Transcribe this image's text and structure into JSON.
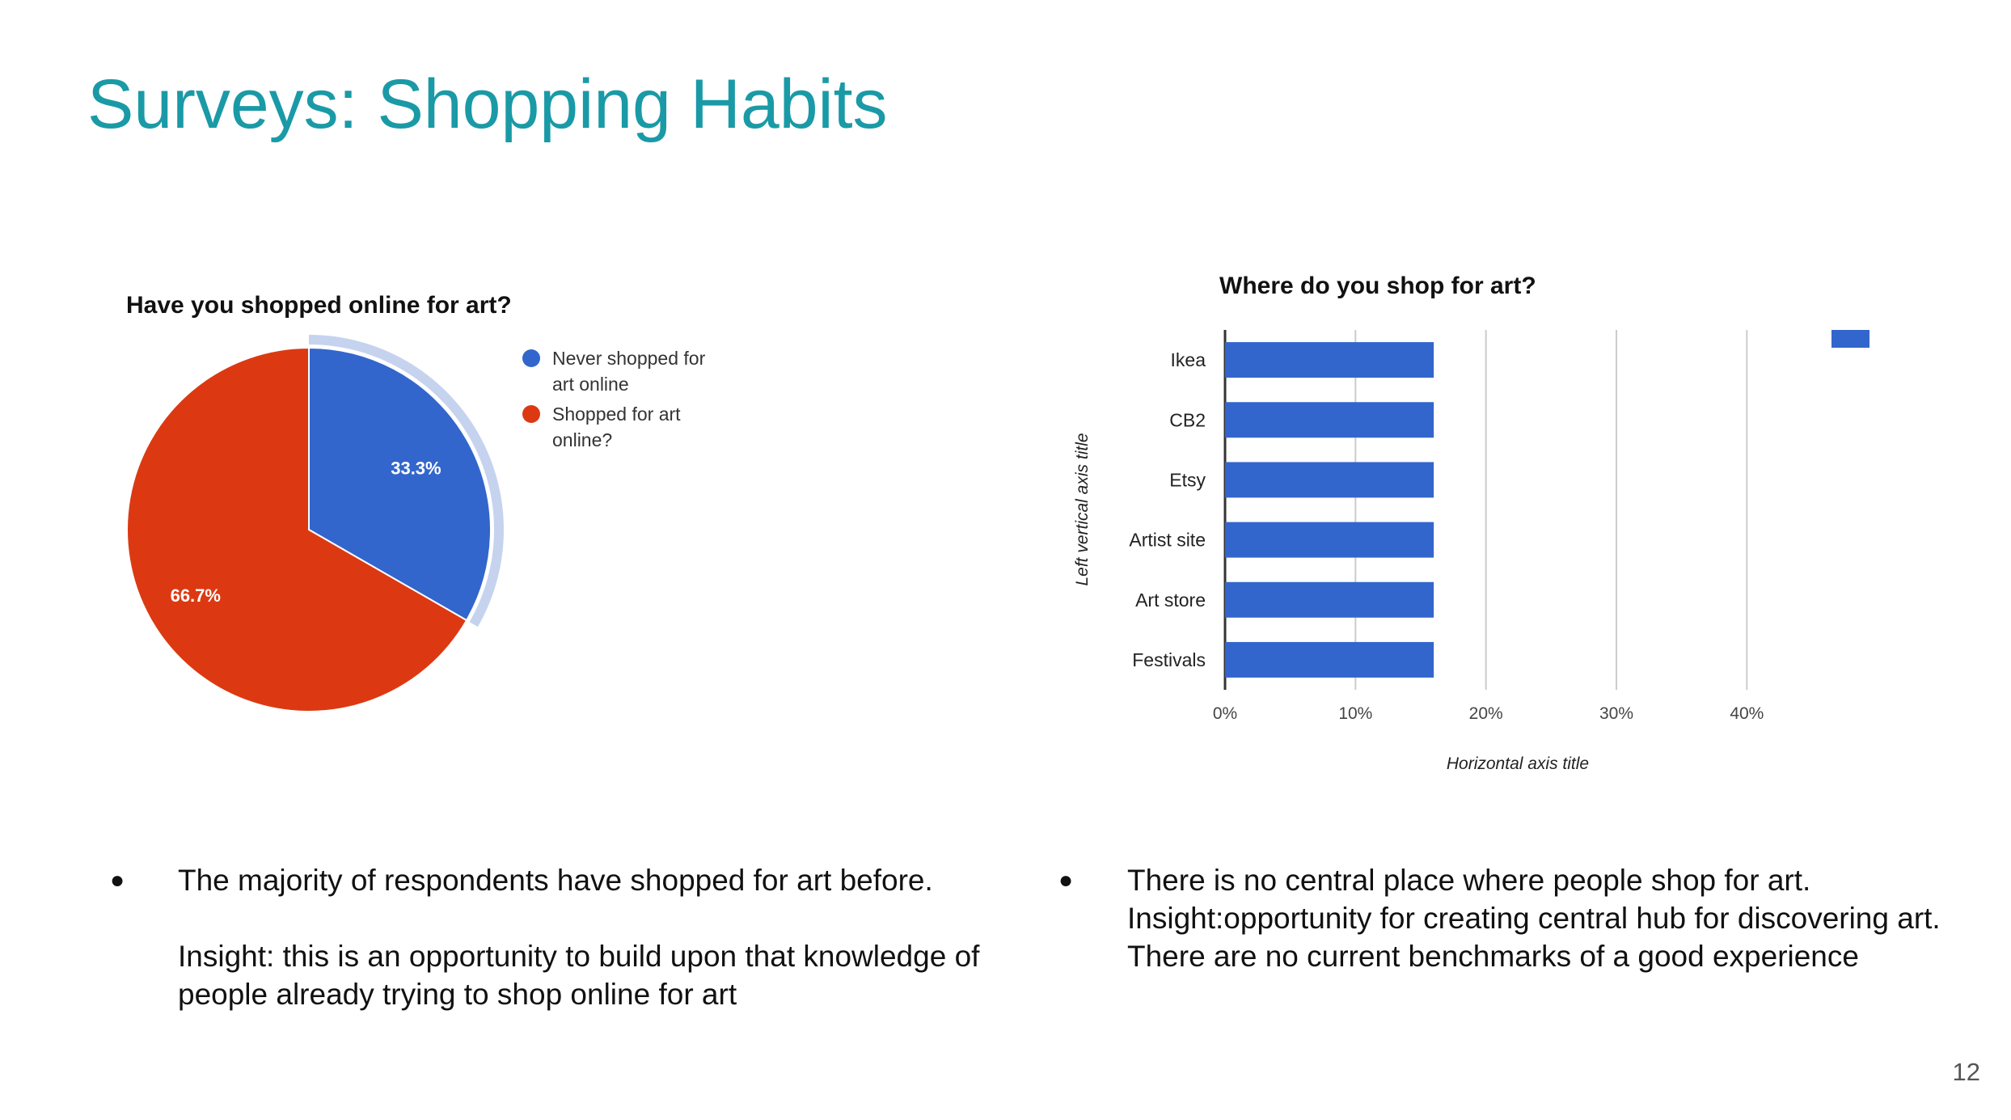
{
  "slide": {
    "title": "Surveys: Shopping Habits",
    "page_number": "12"
  },
  "colors": {
    "title": "#1a9aa6",
    "blue": "#3366cc",
    "red": "#dc3912",
    "highlight": "#c6d3ef",
    "grid": "#cccccc"
  },
  "chart_data": [
    {
      "type": "pie",
      "title": "Have you shopped online for art?",
      "labels": [
        "Never shopped for art online",
        "Shopped for art online?"
      ],
      "legend_lines": [
        [
          "Never shopped for",
          "art online"
        ],
        [
          "Shopped for art",
          "online?"
        ]
      ],
      "values": [
        33.3,
        66.7
      ],
      "value_labels": [
        "33.3%",
        "66.7%"
      ],
      "colors": [
        "#3366cc",
        "#dc3912"
      ],
      "legend": "right"
    },
    {
      "type": "bar",
      "orientation": "horizontal",
      "title": "Where do you shop for art?",
      "categories": [
        "Ikea",
        "CB2",
        "Etsy",
        "Artist site",
        "Art store",
        "Festivals"
      ],
      "values": [
        16,
        16,
        16,
        16,
        16,
        16
      ],
      "xlabel": "Horizontal axis title",
      "ylabel": "Left vertical axis title",
      "xlim": [
        0,
        45
      ],
      "xticks": [
        0,
        10,
        20,
        30,
        40
      ],
      "xtick_labels": [
        "0%",
        "10%",
        "20%",
        "30%",
        "40%"
      ],
      "grid": true,
      "legend": "top-right",
      "color": "#3366cc"
    }
  ],
  "notes": {
    "left": {
      "line1": "The majority of respondents have shopped for art before.",
      "line2": "Insight: this is an opportunity to build upon that knowledge of people already trying to shop online for art"
    },
    "right": {
      "line1": "There is no central place where people shop for art.",
      "line2": "Insight:opportunity for creating central hub for discovering art. There are no current benchmarks of a good experience"
    },
    "bullet": "●"
  }
}
